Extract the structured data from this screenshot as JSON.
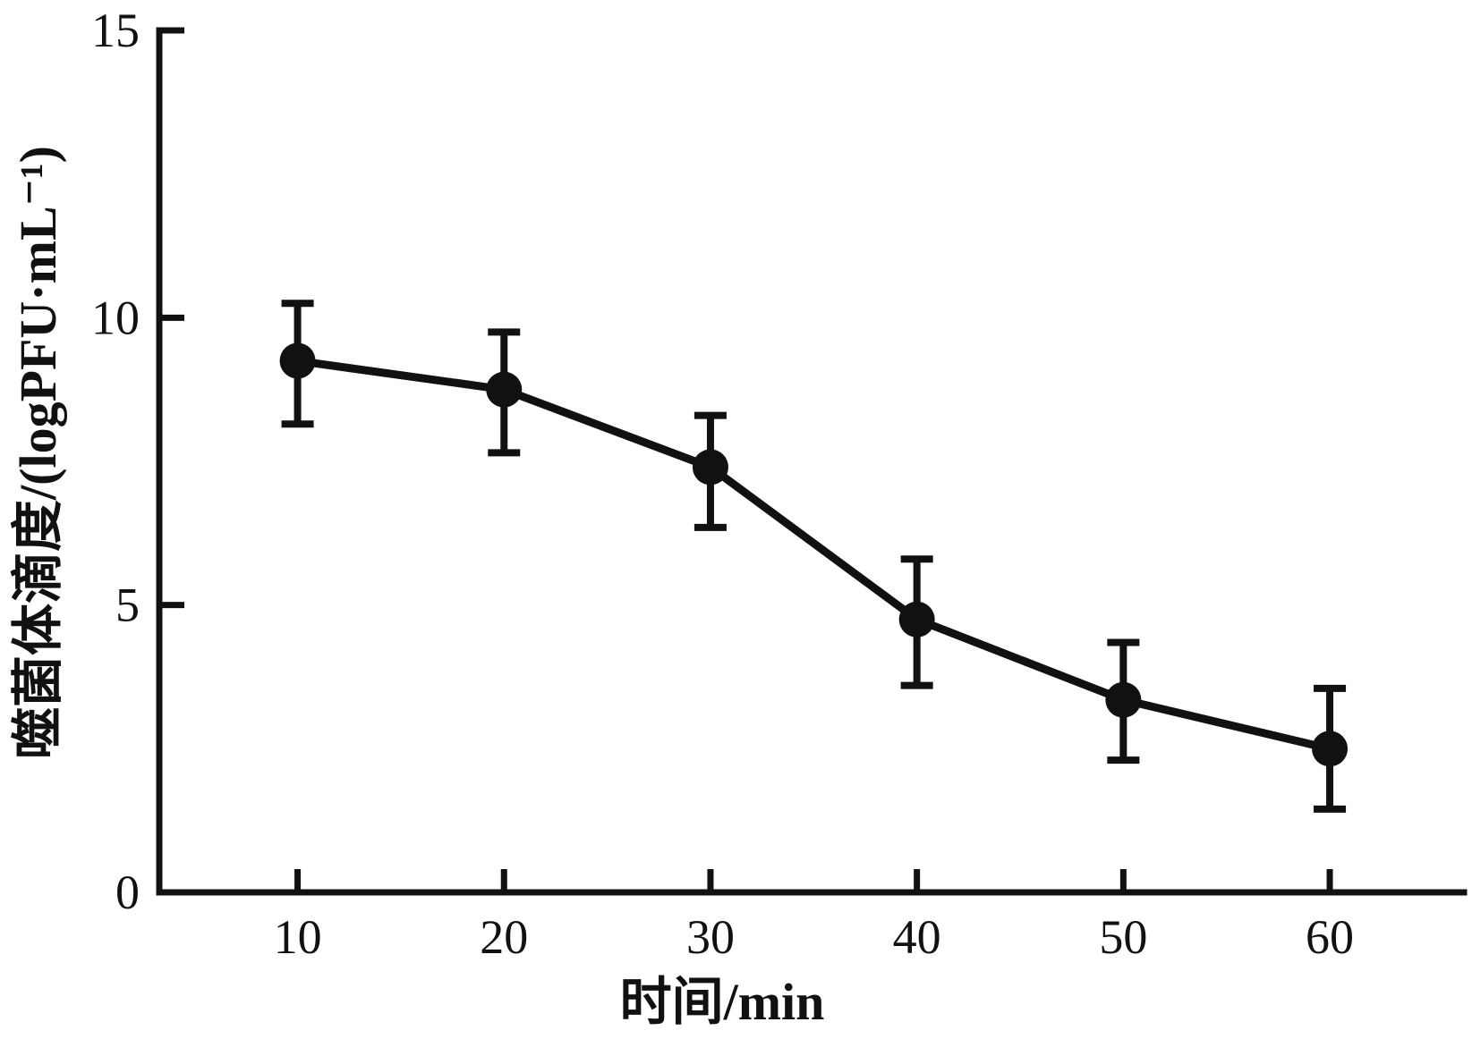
{
  "chart_data": {
    "type": "line",
    "title": "",
    "xlabel": "时间/min",
    "ylabel": "噬菌体滴度/(logPFU·mL⁻¹)",
    "x": [
      10,
      20,
      30,
      40,
      50,
      60
    ],
    "series": [
      {
        "values": [
          9.25,
          8.75,
          7.4,
          4.75,
          3.35,
          2.5
        ],
        "error_lower": [
          8.15,
          7.65,
          6.35,
          3.6,
          2.3,
          1.45
        ],
        "error_upper": [
          10.25,
          9.75,
          8.3,
          5.8,
          4.35,
          3.55
        ],
        "color": "#111111",
        "marker": "circle"
      }
    ],
    "xticks": [
      "10",
      "20",
      "30",
      "40",
      "50",
      "60"
    ],
    "yticks": [
      "0",
      "5",
      "10",
      "15"
    ],
    "ytick_values": [
      0,
      5,
      10,
      15
    ],
    "ylim": [
      0,
      15
    ],
    "xlim": [
      3.3,
      66.5
    ],
    "grid": false,
    "legend": "none"
  }
}
